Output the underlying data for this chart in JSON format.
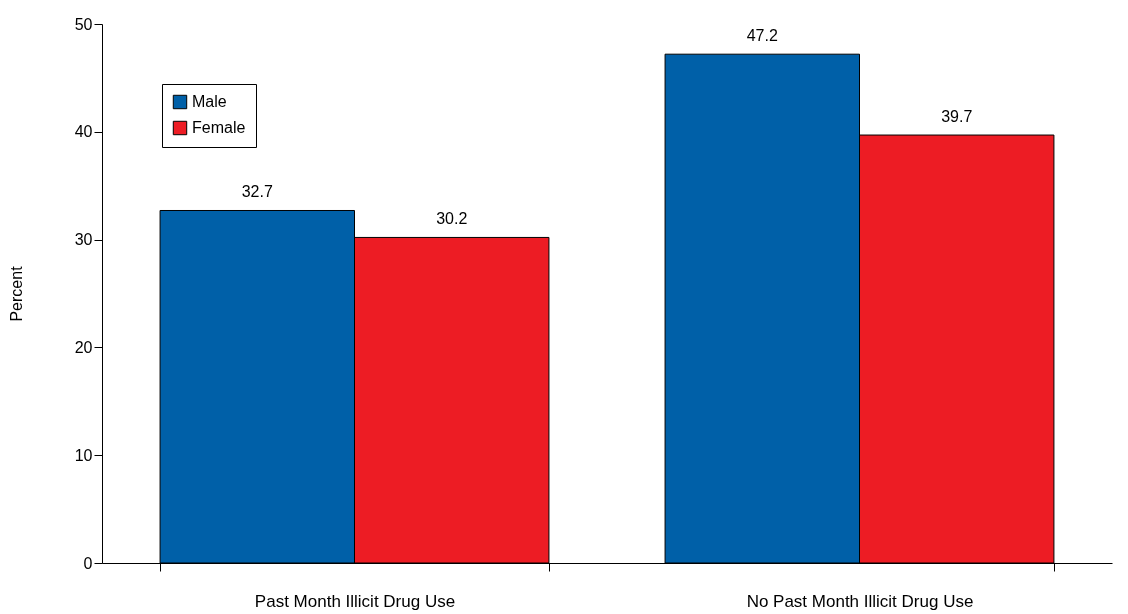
{
  "chart_data": {
    "type": "bar",
    "ylabel": "Percent",
    "categories": [
      "Past Month Illicit Drug Use",
      "No Past Month Illicit Drug Use"
    ],
    "series": [
      {
        "name": "Male",
        "color": "#0060a8",
        "values": [
          32.7,
          47.2
        ]
      },
      {
        "name": "Female",
        "color": "#ed1c24",
        "values": [
          30.2,
          39.7
        ]
      }
    ],
    "ylim": [
      0,
      50
    ],
    "yticks": [
      0,
      10,
      20,
      30,
      40,
      50
    ],
    "grid": false,
    "legend": "top left",
    "data_labels": true
  }
}
